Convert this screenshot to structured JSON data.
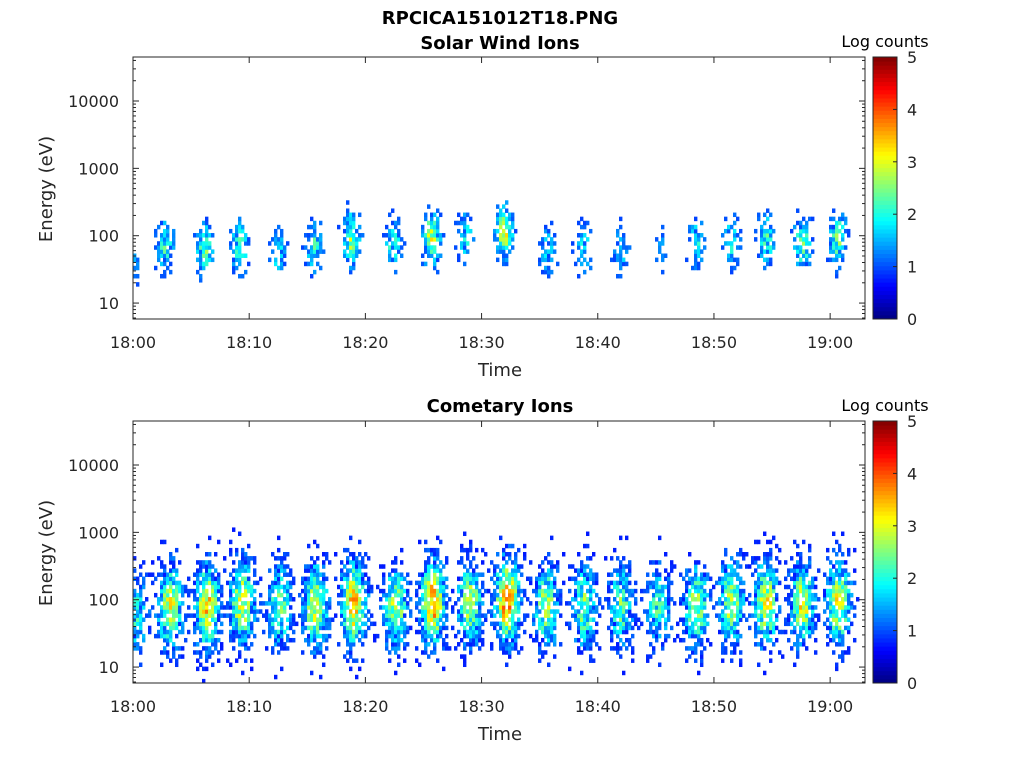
{
  "figure": {
    "title": "RPCICA151012T18.PNG"
  },
  "chart_data": [
    {
      "type": "heatmap",
      "title": "Solar Wind Ions",
      "xlabel": "Time",
      "ylabel": "Energy (eV)",
      "x_ticks": [
        "18:00",
        "18:10",
        "18:20",
        "18:30",
        "18:40",
        "18:50",
        "19:00"
      ],
      "x_range_minutes": [
        0,
        63
      ],
      "y_ticks": [
        "10",
        "100",
        "1000",
        "10000"
      ],
      "y_scale": "log",
      "y_range": [
        5.8,
        45000
      ],
      "colorbar": {
        "title": "Log counts",
        "ticks": [
          "0",
          "1",
          "2",
          "3",
          "4",
          "5"
        ],
        "range": [
          0,
          5
        ],
        "colormap": "jet"
      },
      "bursts": [
        {
          "t": 0.0,
          "e": 35,
          "a": 1.0
        },
        {
          "t": 2.8,
          "e": 70,
          "a": 2.0
        },
        {
          "t": 6.2,
          "e": 65,
          "a": 2.3
        },
        {
          "t": 9.2,
          "e": 70,
          "a": 2.1
        },
        {
          "t": 12.5,
          "e": 55,
          "a": 1.5
        },
        {
          "t": 15.6,
          "e": 70,
          "a": 1.9
        },
        {
          "t": 18.8,
          "e": 90,
          "a": 2.6
        },
        {
          "t": 22.4,
          "e": 80,
          "a": 1.9
        },
        {
          "t": 25.7,
          "e": 90,
          "a": 2.9
        },
        {
          "t": 28.6,
          "e": 100,
          "a": 1.6
        },
        {
          "t": 32.0,
          "e": 110,
          "a": 2.9
        },
        {
          "t": 35.7,
          "e": 60,
          "a": 1.6
        },
        {
          "t": 38.8,
          "e": 60,
          "a": 1.6
        },
        {
          "t": 42.0,
          "e": 60,
          "a": 1.3
        },
        {
          "t": 45.4,
          "e": 60,
          "a": 1.1
        },
        {
          "t": 48.5,
          "e": 80,
          "a": 1.6
        },
        {
          "t": 51.5,
          "e": 80,
          "a": 1.8
        },
        {
          "t": 54.5,
          "e": 90,
          "a": 2.0
        },
        {
          "t": 57.6,
          "e": 80,
          "a": 2.3
        },
        {
          "t": 60.7,
          "e": 90,
          "a": 2.3
        }
      ]
    },
    {
      "type": "heatmap",
      "title": "Cometary Ions",
      "xlabel": "Time",
      "ylabel": "Energy (eV)",
      "x_ticks": [
        "18:00",
        "18:10",
        "18:20",
        "18:30",
        "18:40",
        "18:50",
        "19:00"
      ],
      "x_range_minutes": [
        0,
        63
      ],
      "y_ticks": [
        "10",
        "100",
        "1000",
        "10000"
      ],
      "y_scale": "log",
      "y_range": [
        5.8,
        45000
      ],
      "colorbar": {
        "title": "Log counts",
        "ticks": [
          "0",
          "1",
          "2",
          "3",
          "4",
          "5"
        ],
        "range": [
          0,
          5
        ],
        "colormap": "jet"
      },
      "bursts": [
        {
          "t": 0.3,
          "e": 60,
          "a": 1.8
        },
        {
          "t": 3.2,
          "e": 80,
          "a": 2.9
        },
        {
          "t": 6.4,
          "e": 80,
          "a": 3.3
        },
        {
          "t": 9.4,
          "e": 90,
          "a": 3.0
        },
        {
          "t": 12.6,
          "e": 80,
          "a": 2.4
        },
        {
          "t": 15.7,
          "e": 80,
          "a": 3.0
        },
        {
          "t": 19.0,
          "e": 90,
          "a": 3.5
        },
        {
          "t": 22.6,
          "e": 80,
          "a": 2.7
        },
        {
          "t": 25.8,
          "e": 90,
          "a": 3.7
        },
        {
          "t": 29.0,
          "e": 90,
          "a": 2.8
        },
        {
          "t": 32.2,
          "e": 100,
          "a": 3.8
        },
        {
          "t": 35.6,
          "e": 80,
          "a": 2.7
        },
        {
          "t": 38.8,
          "e": 80,
          "a": 2.4
        },
        {
          "t": 42.0,
          "e": 80,
          "a": 2.3
        },
        {
          "t": 45.2,
          "e": 80,
          "a": 2.0
        },
        {
          "t": 48.5,
          "e": 80,
          "a": 2.7
        },
        {
          "t": 51.5,
          "e": 90,
          "a": 2.8
        },
        {
          "t": 54.5,
          "e": 90,
          "a": 3.0
        },
        {
          "t": 57.6,
          "e": 90,
          "a": 3.1
        },
        {
          "t": 60.7,
          "e": 90,
          "a": 3.0
        }
      ]
    }
  ]
}
